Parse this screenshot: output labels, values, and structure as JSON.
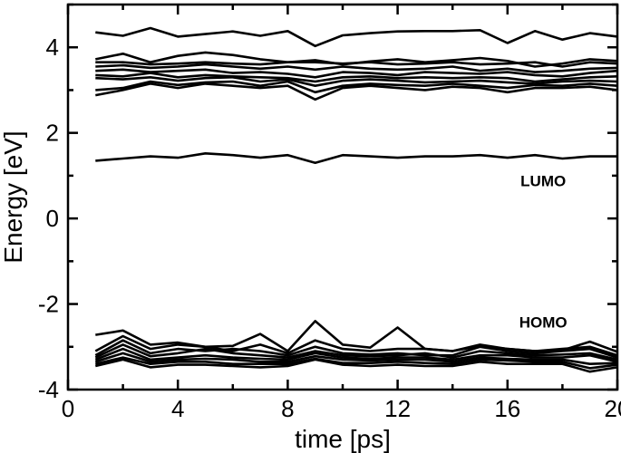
{
  "chart_data": {
    "type": "line",
    "xlabel": "time [ps]",
    "ylabel": "Energy [eV]",
    "xlim": [
      0,
      20
    ],
    "ylim": [
      -4,
      5
    ],
    "xticks": [
      0,
      4,
      8,
      12,
      16,
      20
    ],
    "yticks": [
      -4,
      -2,
      0,
      2,
      4
    ],
    "xtick_labels": [
      "0",
      "4",
      "8",
      "12",
      "16",
      "20"
    ],
    "ytick_labels": [
      "-4",
      "-2",
      "0",
      "2",
      "4"
    ],
    "minor_x_step": 2,
    "minor_y_step": 1,
    "grid": false,
    "line_color": "#000000",
    "annotations": [
      {
        "text": "LUMO",
        "x": 17.3,
        "y": 0.75
      },
      {
        "text": "HOMO",
        "x": 17.3,
        "y": -2.55
      }
    ],
    "x": [
      1,
      2,
      3,
      4,
      5,
      6,
      7,
      8,
      9,
      10,
      11,
      12,
      13,
      14,
      15,
      16,
      17,
      18,
      19,
      20
    ],
    "series": [
      {
        "values": [
          4.35,
          4.27,
          4.45,
          4.25,
          4.31,
          4.37,
          4.27,
          4.38,
          4.03,
          4.28,
          4.33,
          4.37,
          4.38,
          4.38,
          4.4,
          4.1,
          4.38,
          4.18,
          4.33,
          4.25
        ]
      },
      {
        "values": [
          3.72,
          3.85,
          3.65,
          3.8,
          3.88,
          3.82,
          3.72,
          3.65,
          3.7,
          3.6,
          3.67,
          3.72,
          3.65,
          3.7,
          3.75,
          3.68,
          3.55,
          3.62,
          3.72,
          3.68
        ]
      },
      {
        "values": [
          3.65,
          3.65,
          3.6,
          3.62,
          3.65,
          3.62,
          3.6,
          3.65,
          3.65,
          3.62,
          3.65,
          3.6,
          3.62,
          3.65,
          3.6,
          3.62,
          3.65,
          3.55,
          3.65,
          3.62
        ]
      },
      {
        "values": [
          3.55,
          3.58,
          3.52,
          3.55,
          3.6,
          3.55,
          3.5,
          3.55,
          3.48,
          3.55,
          3.5,
          3.48,
          3.5,
          3.55,
          3.45,
          3.5,
          3.42,
          3.45,
          3.5,
          3.52
        ]
      },
      {
        "values": [
          3.45,
          3.48,
          3.42,
          3.45,
          3.48,
          3.4,
          3.42,
          3.38,
          3.3,
          3.42,
          3.4,
          3.35,
          3.42,
          3.4,
          3.38,
          3.42,
          3.35,
          3.32,
          3.4,
          3.45
        ]
      },
      {
        "values": [
          3.35,
          3.32,
          3.4,
          3.3,
          3.35,
          3.32,
          3.3,
          3.28,
          3.2,
          3.3,
          3.32,
          3.28,
          3.3,
          3.28,
          3.3,
          3.28,
          3.2,
          3.25,
          3.3,
          3.32
        ]
      },
      {
        "values": [
          3.28,
          3.25,
          3.3,
          3.22,
          3.28,
          3.3,
          3.2,
          3.25,
          3.1,
          3.22,
          3.25,
          3.22,
          3.18,
          3.2,
          3.22,
          3.18,
          3.15,
          3.2,
          3.22,
          3.2
        ]
      },
      {
        "values": [
          3.0,
          3.05,
          3.2,
          3.12,
          3.18,
          3.2,
          3.1,
          3.2,
          2.95,
          3.1,
          3.15,
          3.12,
          3.1,
          3.15,
          3.1,
          3.05,
          3.12,
          3.1,
          3.15,
          3.1
        ]
      },
      {
        "values": [
          2.88,
          3.0,
          3.15,
          3.05,
          3.15,
          3.1,
          3.05,
          3.1,
          2.78,
          3.05,
          3.1,
          3.05,
          3.0,
          3.08,
          3.05,
          2.95,
          3.05,
          3.05,
          3.08,
          3.0
        ]
      },
      {
        "values": [
          1.35,
          1.4,
          1.45,
          1.42,
          1.52,
          1.48,
          1.42,
          1.48,
          1.3,
          1.48,
          1.45,
          1.42,
          1.45,
          1.45,
          1.48,
          1.42,
          1.48,
          1.4,
          1.45,
          1.45
        ]
      },
      {
        "values": [
          -2.72,
          -2.62,
          -2.95,
          -2.9,
          -3.0,
          -2.98,
          -2.7,
          -3.1,
          -2.4,
          -2.95,
          -3.02,
          -2.55,
          -3.05,
          -3.1,
          -2.98,
          -3.05,
          -3.1,
          -3.08,
          -2.88,
          -3.12
        ]
      },
      {
        "values": [
          -3.1,
          -2.75,
          -3.05,
          -2.95,
          -3.0,
          -3.1,
          -2.95,
          -3.15,
          -2.85,
          -3.05,
          -3.1,
          -3.05,
          -3.05,
          -3.1,
          -2.95,
          -3.05,
          -3.1,
          -3.05,
          -3.0,
          -3.2
        ]
      },
      {
        "values": [
          -3.2,
          -2.85,
          -3.15,
          -3.05,
          -3.1,
          -3.05,
          -3.1,
          -3.2,
          -3.0,
          -3.15,
          -3.18,
          -3.15,
          -3.2,
          -3.2,
          -3.0,
          -3.1,
          -3.15,
          -3.1,
          -3.05,
          -3.25
        ]
      },
      {
        "values": [
          -3.25,
          -2.95,
          -3.22,
          -3.15,
          -3.05,
          -3.15,
          -3.2,
          -3.25,
          -3.1,
          -3.2,
          -3.22,
          -3.2,
          -3.15,
          -3.25,
          -3.1,
          -3.15,
          -3.2,
          -3.18,
          -3.15,
          -3.3
        ]
      },
      {
        "values": [
          -3.3,
          -3.05,
          -3.3,
          -3.25,
          -3.2,
          -3.25,
          -3.28,
          -3.3,
          -3.15,
          -3.25,
          -3.28,
          -3.25,
          -3.25,
          -3.3,
          -3.2,
          -3.2,
          -3.25,
          -3.25,
          -3.2,
          -3.35
        ]
      },
      {
        "values": [
          -3.35,
          -3.15,
          -3.35,
          -3.3,
          -3.28,
          -3.3,
          -3.35,
          -3.35,
          -3.22,
          -3.3,
          -3.32,
          -3.3,
          -3.3,
          -3.35,
          -3.25,
          -3.28,
          -3.3,
          -3.3,
          -3.4,
          -3.38
        ]
      },
      {
        "values": [
          -3.4,
          -3.25,
          -3.4,
          -3.35,
          -3.35,
          -3.4,
          -3.4,
          -3.4,
          -3.28,
          -3.38,
          -3.38,
          -3.35,
          -3.38,
          -3.4,
          -3.3,
          -3.32,
          -3.35,
          -3.35,
          -3.5,
          -3.42
        ]
      },
      {
        "values": [
          -3.45,
          -3.3,
          -3.48,
          -3.42,
          -3.42,
          -3.45,
          -3.48,
          -3.45,
          -3.3,
          -3.42,
          -3.45,
          -3.42,
          -3.45,
          -3.45,
          -3.35,
          -3.4,
          -3.4,
          -3.4,
          -3.58,
          -3.48
        ]
      }
    ]
  }
}
